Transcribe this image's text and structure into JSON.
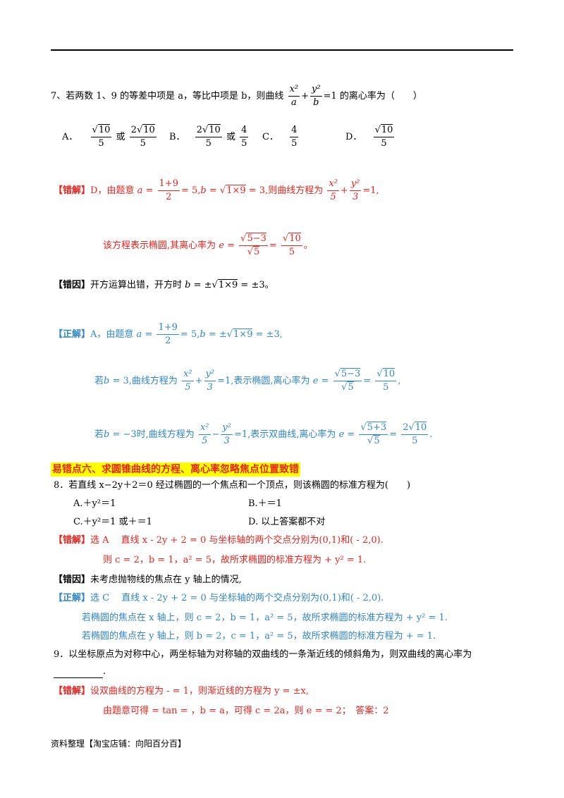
{
  "q7": {
    "stem_prefix": "7、若两数 1、9 的等差中项是 a，等比中项是 b，则曲线",
    "stem_suffix": "的离心率为（　　）",
    "options": {
      "a_label": "A．",
      "b_label": "B．",
      "c_label": "C．",
      "d_label": "D．",
      "or": "或"
    },
    "wrong": {
      "tag": "【错解】",
      "text1": "D，由题意",
      "text2": "则曲线方程为",
      "text3": "该方程表示椭圆,其离心率为"
    },
    "cause": {
      "tag": "【错因】",
      "text": "开方运算出错，开方时"
    },
    "correct": {
      "tag": "【正解】",
      "text1": "A，由题意",
      "if": "若",
      "case1_a": "曲线方程为",
      "case1_b": "表示椭圆,离心率为",
      "case2_a": "时,曲线方程为",
      "case2_b": "表示双曲线,离心率为"
    }
  },
  "section6": {
    "title": "易错点六、求圆锥曲线的方程、离心率忽略焦点位置致错"
  },
  "q8": {
    "stem": "8．若直线 x−2y＋2＝0 经过椭圆的一个焦点和一个顶点，则该椭圆的标准方程为(　　)",
    "options": {
      "a": "A.＋y²＝1",
      "b": "B.＋＝1",
      "c": "C.＋y²＝1 或＋＝1",
      "d": "D.  以上答案都不对"
    },
    "wrong": {
      "tag": "【错解】",
      "line1": "选 A　 直线 x - 2y + 2 = 0 与坐标轴的两个交点分别为(0,1)和( - 2,0).",
      "line2": "则 c = 2，b = 1，a² = 5，故所求椭圆的标准方程为 + y² = 1."
    },
    "cause": {
      "tag": "【错因】",
      "text": "未考虑抛物线的焦点在 y 轴上的情况,"
    },
    "correct": {
      "tag": "【正解】",
      "line1": "选 C　 直线 x - 2y + 2 = 0 与坐标轴的两个交点分别为(0,1)和( - 2,0).",
      "line2": "若椭圆的焦点在 x 轴上，则 c = 2，b = 1，a² = 5，故所求椭圆的标准方程为 + y² = 1.",
      "line3": "若椭圆的焦点在 y 轴上，则 b = 2，c = 1，a² = 5，故所求椭圆的标准方程为 + = 1."
    }
  },
  "q9": {
    "stem": "9．以坐标原点为对称中心，两坐标轴为对称轴的双曲线的一条渐近线的倾斜角为，则双曲线的离心率为",
    "blank_end": ".",
    "wrong": {
      "tag": "【错解】",
      "line1": "设双曲线的方程为 - = 1，则渐近线的方程为 y = ±x,",
      "line2": "由题意可得 = tan = ，b = a，可得 c = 2a，则 e = = 2；　答案：2"
    }
  },
  "footer": {
    "text": "资料整理【淘宝店铺：向阳百分百】"
  }
}
